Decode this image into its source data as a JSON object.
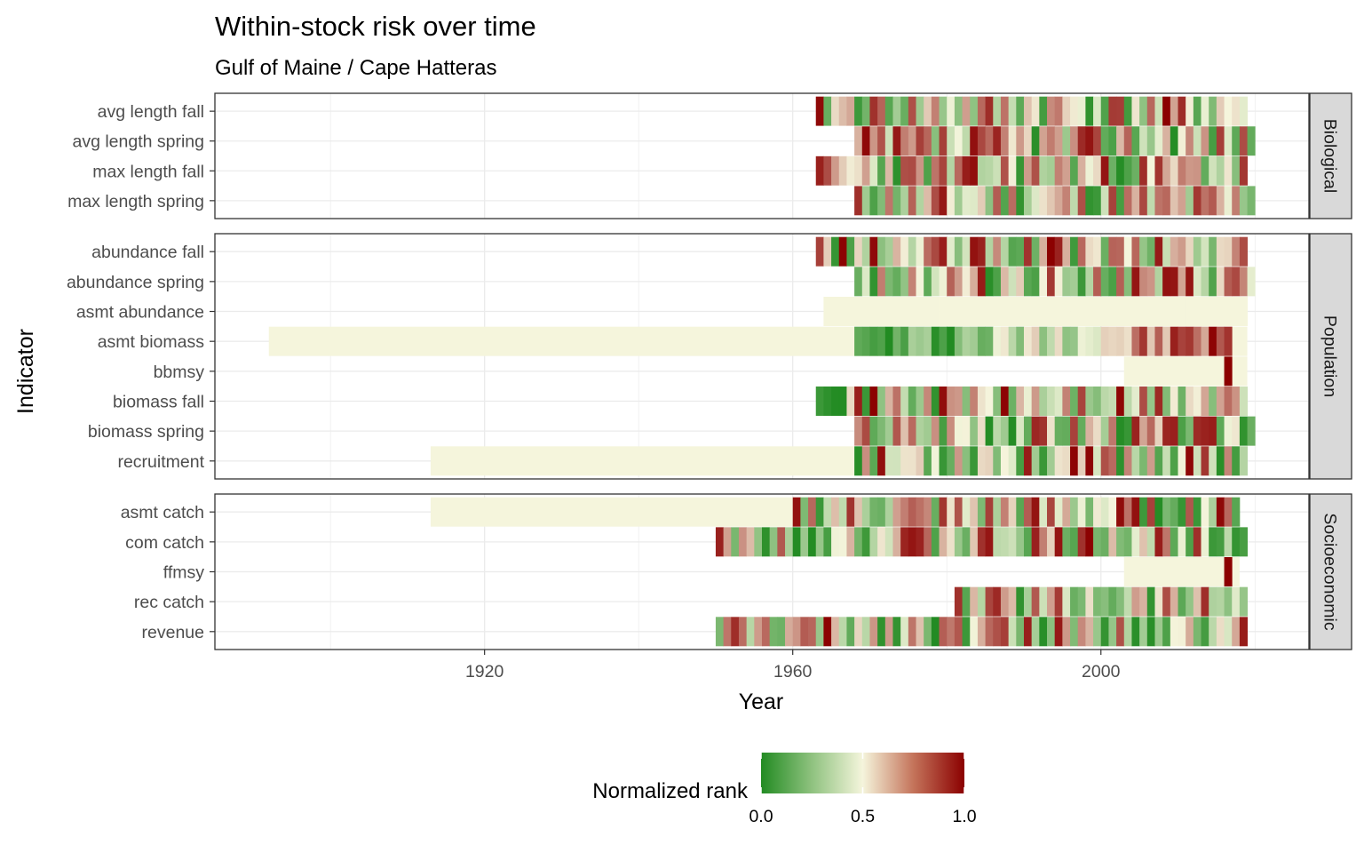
{
  "chart_data": {
    "type": "heatmap",
    "title": "Within-stock risk over time",
    "subtitle": "Gulf of Maine / Cape Hatteras",
    "xlabel": "Year",
    "ylabel": "Indicator",
    "xlim": [
      1885,
      2027
    ],
    "x_ticks": [
      1920,
      1960,
      2000
    ],
    "grid": true,
    "legend": {
      "title": "Normalized rank",
      "position": "bottom",
      "ticks": [
        0.0,
        0.5,
        1.0
      ],
      "tick_labels": [
        "0.0",
        "0.5",
        "1.0"
      ],
      "colors": {
        "low": "#228b22",
        "mid": "#f5f5dc",
        "high": "#8b0000"
      }
    },
    "panels": [
      {
        "name": "Biological",
        "rows": [
          {
            "label": "max length spring",
            "start": 1968,
            "end": 2020,
            "seed": 11
          },
          {
            "label": "max length fall",
            "start": 1963,
            "end": 2019,
            "seed": 23
          },
          {
            "label": "avg length spring",
            "start": 1968,
            "end": 2020,
            "seed": 37
          },
          {
            "label": "avg length fall",
            "start": 1963,
            "end": 2019,
            "seed": 41
          }
        ]
      },
      {
        "name": "Population",
        "rows": [
          {
            "label": "recruitment",
            "start": 1968,
            "end": 2019,
            "seed": 53,
            "constant": {
              "start": 1913,
              "end": 1968,
              "value": 0.5
            }
          },
          {
            "label": "biomass spring",
            "start": 1968,
            "end": 2020,
            "seed": 67
          },
          {
            "label": "biomass fall",
            "start": 1963,
            "end": 2019,
            "seed": 71
          },
          {
            "label": "bbmsy",
            "start": 2016,
            "end": 2017,
            "seed": 83,
            "fixed": 1.0,
            "constant": {
              "start": 2003,
              "end": 2019,
              "value": 0.5
            }
          },
          {
            "label": "asmt biomass",
            "start": 1968,
            "end": 2017,
            "seed": 97,
            "trend": true,
            "constant": {
              "start": 1892,
              "end": 2019,
              "value": 0.5
            }
          },
          {
            "label": "asmt abundance",
            "start": 1964,
            "end": 2019,
            "seed": 101,
            "fixed": 0.5
          },
          {
            "label": "abundance spring",
            "start": 1968,
            "end": 2020,
            "seed": 113
          },
          {
            "label": "abundance fall",
            "start": 1963,
            "end": 2019,
            "seed": 127
          }
        ]
      },
      {
        "name": "Socioeconomic",
        "rows": [
          {
            "label": "revenue",
            "start": 1950,
            "end": 2019,
            "seed": 131
          },
          {
            "label": "rec catch",
            "start": 1981,
            "end": 2019,
            "seed": 139
          },
          {
            "label": "ffmsy",
            "start": 2016,
            "end": 2017,
            "seed": 149,
            "fixed": 1.0,
            "constant": {
              "start": 2003,
              "end": 2018,
              "value": 0.5
            }
          },
          {
            "label": "com catch",
            "start": 1950,
            "end": 2019,
            "seed": 151
          },
          {
            "label": "asmt catch",
            "start": 1960,
            "end": 2018,
            "seed": 163,
            "constant": {
              "start": 1913,
              "end": 1960,
              "value": 0.5
            }
          }
        ]
      }
    ]
  }
}
